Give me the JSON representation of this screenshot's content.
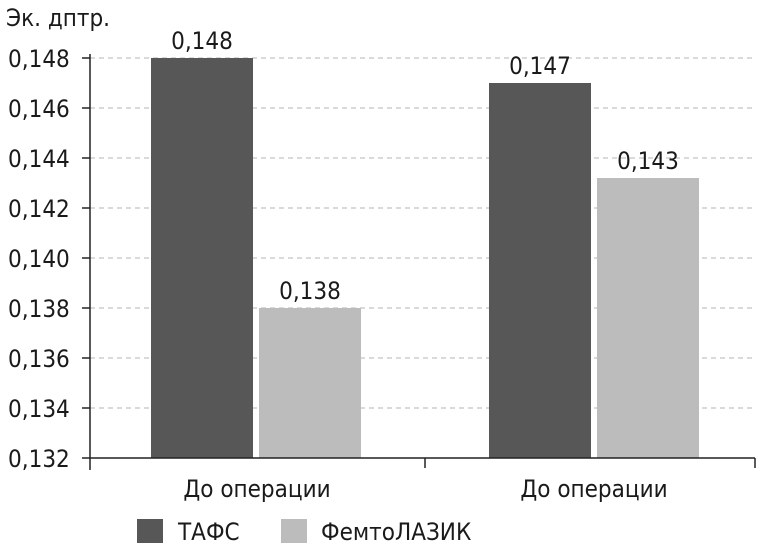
{
  "chart_data": {
    "type": "bar",
    "ylabel": "Эк. дптр.",
    "categories": [
      "До операции",
      "До операции"
    ],
    "series": [
      {
        "name": "ТАФС",
        "values": [
          0.148,
          0.147
        ],
        "labels": [
          "0,148",
          "0,147"
        ],
        "color": "#575757"
      },
      {
        "name": "ФемтоЛАЗИК",
        "values": [
          0.138,
          0.1432
        ],
        "labels": [
          "0,138",
          "0,143"
        ],
        "color": "#bcbcbc"
      }
    ],
    "ylim": [
      0.132,
      0.148
    ],
    "yticks": [
      0.132,
      0.134,
      0.136,
      0.138,
      0.14,
      0.142,
      0.144,
      0.146,
      0.148
    ],
    "ytick_labels": [
      "0,132",
      "0,134",
      "0,136",
      "0,138",
      "0,140",
      "0,142",
      "0,144",
      "0,146",
      "0,148"
    ],
    "grid": true,
    "legend": "bottom"
  }
}
